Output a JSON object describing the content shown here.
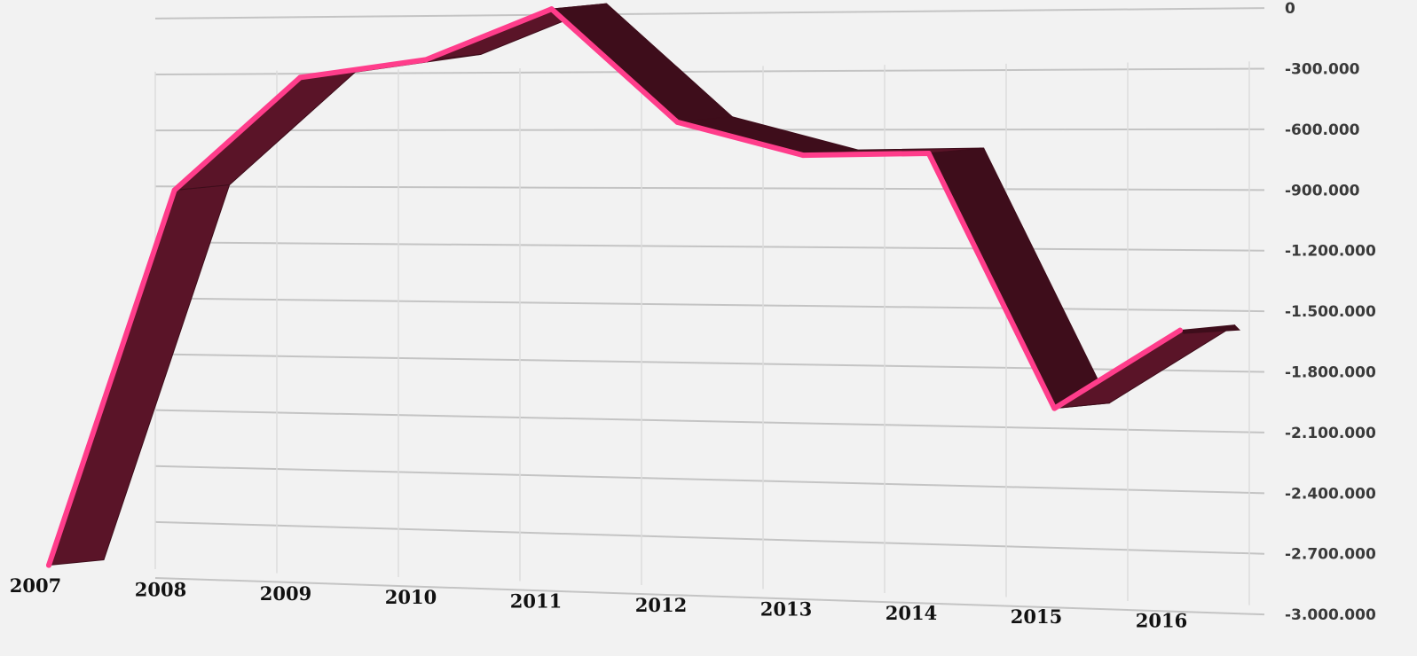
{
  "chart_data": {
    "type": "line",
    "style": "3d-ribbon",
    "title": "",
    "xlabel": "",
    "ylabel": "",
    "categories": [
      "2007",
      "2008",
      "2009",
      "2010",
      "2011",
      "2012",
      "2013",
      "2014",
      "2015",
      "2016"
    ],
    "series": [
      {
        "values": [
          -2950000,
          -920000,
          -320000,
          -230000,
          30000,
          -560000,
          -730000,
          -720000,
          -2000000,
          -1600000
        ]
      }
    ],
    "ylim": [
      -3000000,
      0
    ],
    "y_ticks": [
      0,
      -300000,
      -600000,
      -900000,
      -1200000,
      -1500000,
      -1800000,
      -2100000,
      -2400000,
      -2700000,
      -3000000
    ],
    "y_tick_labels": [
      "0",
      "-300.000",
      "-600.000",
      "-900.000",
      "-1.200.000",
      "-1.500.000",
      "-1.800.000",
      "-2.100.000",
      "-2.400.000",
      "-2.700.000",
      "-3.000.000"
    ],
    "y_axis_position": "right",
    "grid": true,
    "legend": "none",
    "colors": {
      "line": "#ff3d8b",
      "ribbon": "#5a1428",
      "ribbon_dark": "#3e0d1b",
      "grid": "#c4c4c4",
      "background": "#f2f2f2"
    }
  }
}
